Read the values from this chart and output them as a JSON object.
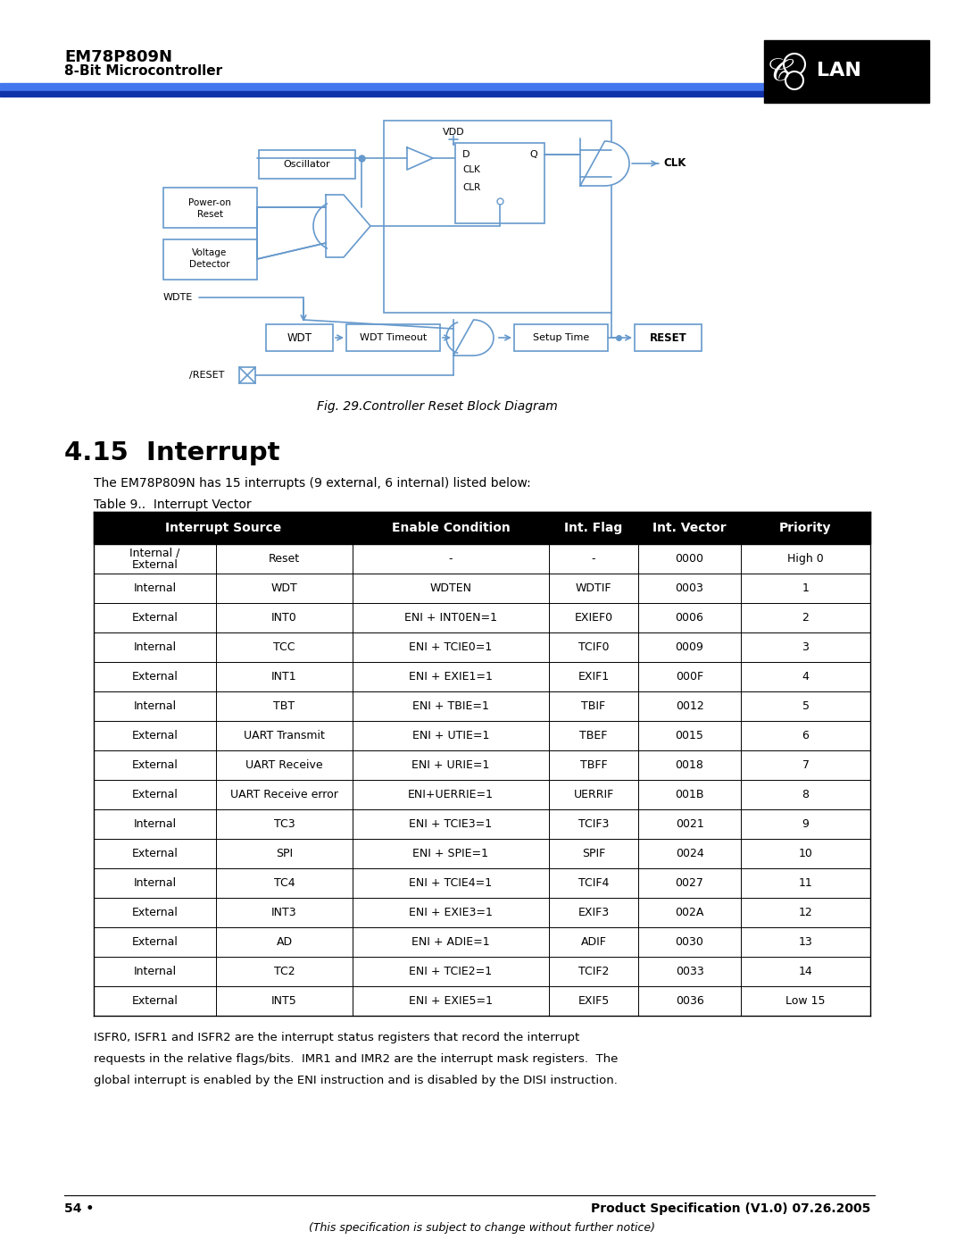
{
  "title_line1": "EM78P809N",
  "title_line2": "8-Bit Microcontroller",
  "fig_caption": "Fig. 29.Controller Reset Block Diagram",
  "section_title": "4.15  Interrupt",
  "section_intro": "The EM78P809N has 15 interrupts (9 external, 6 internal) listed below:",
  "table_title": "Table 9..  Interrupt Vector",
  "table_headers": [
    "Interrupt Source",
    "Enable Condition",
    "Int. Flag",
    "Int. Vector",
    "Priority"
  ],
  "table_rows": [
    [
      "Internal /\nExternal",
      "Reset",
      "-",
      "-",
      "0000",
      "High 0"
    ],
    [
      "Internal",
      "WDT",
      "WDTEN",
      "WDTIF",
      "0003",
      "1"
    ],
    [
      "External",
      "INT0",
      "ENI + INT0EN=1",
      "EXIEF0",
      "0006",
      "2"
    ],
    [
      "Internal",
      "TCC",
      "ENI + TCIE0=1",
      "TCIF0",
      "0009",
      "3"
    ],
    [
      "External",
      "INT1",
      "ENI + EXIE1=1",
      "EXIF1",
      "000F",
      "4"
    ],
    [
      "Internal",
      "TBT",
      "ENI + TBIE=1",
      "TBIF",
      "0012",
      "5"
    ],
    [
      "External",
      "UART Transmit",
      "ENI + UTIE=1",
      "TBEF",
      "0015",
      "6"
    ],
    [
      "External",
      "UART Receive",
      "ENI + URIE=1",
      "TBFF",
      "0018",
      "7"
    ],
    [
      "External",
      "UART Receive error",
      "ENI+UERRIE=1",
      "UERRIF",
      "001B",
      "8"
    ],
    [
      "Internal",
      "TC3",
      "ENI + TCIE3=1",
      "TCIF3",
      "0021",
      "9"
    ],
    [
      "External",
      "SPI",
      "ENI + SPIE=1",
      "SPIF",
      "0024",
      "10"
    ],
    [
      "Internal",
      "TC4",
      "ENI + TCIE4=1",
      "TCIF4",
      "0027",
      "11"
    ],
    [
      "External",
      "INT3",
      "ENI + EXIE3=1",
      "EXIF3",
      "002A",
      "12"
    ],
    [
      "External",
      "AD",
      "ENI + ADIE=1",
      "ADIF",
      "0030",
      "13"
    ],
    [
      "Internal",
      "TC2",
      "ENI + TCIE2=1",
      "TCIF2",
      "0033",
      "14"
    ],
    [
      "External",
      "INT5",
      "ENI + EXIE5=1",
      "EXIF5",
      "0036",
      "Low 15"
    ]
  ],
  "footer_text": "ISFR0, ISFR1 and ISFR2 are the interrupt status registers that record the interrupt requests in the relative flags/bits.  IMR1 and IMR2 are the interrupt mask registers.  The global interrupt is enabled by the ENI instruction and is disabled by the DISI instruction.",
  "page_num": "54 •",
  "product_spec": "Product Specification (V1.0) 07.26.2005",
  "disclaimer": "(This specification is subject to change without further notice)",
  "blue_bar_color": "#3366cc",
  "dark_blue_bar": "#1a3a8a",
  "diagram_color": "#6699cc"
}
